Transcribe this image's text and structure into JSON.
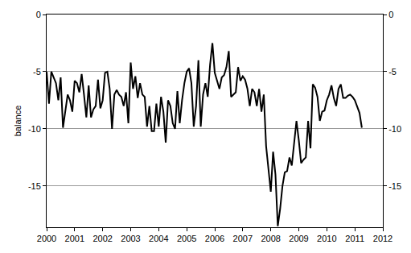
{
  "chart_data": {
    "type": "line",
    "y_label": "balance",
    "color": "#000000",
    "grid": true,
    "xlim": [
      2000,
      2012
    ],
    "xticks": [
      2000,
      2001,
      2002,
      2003,
      2004,
      2005,
      2006,
      2007,
      2008,
      2009,
      2010,
      2011,
      2012
    ],
    "ylim": [
      -18.6,
      0
    ],
    "yticks": [
      -15,
      -10,
      -5,
      0
    ],
    "y2lim": [
      -18.6,
      0
    ],
    "y2ticks": [
      -15,
      -10,
      -5,
      0
    ],
    "x": [
      2000,
      2000.083,
      2000.167,
      2000.25,
      2000.333,
      2000.417,
      2000.5,
      2000.583,
      2000.667,
      2000.75,
      2000.833,
      2000.917,
      2001,
      2001.083,
      2001.167,
      2001.25,
      2001.333,
      2001.417,
      2001.5,
      2001.583,
      2001.667,
      2001.75,
      2001.833,
      2001.917,
      2002,
      2002.083,
      2002.167,
      2002.25,
      2002.333,
      2002.417,
      2002.5,
      2002.583,
      2002.667,
      2002.75,
      2002.833,
      2002.917,
      2003,
      2003.083,
      2003.167,
      2003.25,
      2003.333,
      2003.417,
      2003.5,
      2003.583,
      2003.667,
      2003.75,
      2003.833,
      2003.917,
      2004,
      2004.083,
      2004.167,
      2004.25,
      2004.333,
      2004.417,
      2004.5,
      2004.583,
      2004.667,
      2004.75,
      2004.833,
      2004.917,
      2005,
      2005.083,
      2005.167,
      2005.25,
      2005.333,
      2005.417,
      2005.5,
      2005.583,
      2005.667,
      2005.75,
      2005.833,
      2005.917,
      2006,
      2006.083,
      2006.167,
      2006.25,
      2006.333,
      2006.417,
      2006.5,
      2006.583,
      2006.667,
      2006.75,
      2006.833,
      2006.917,
      2007,
      2007.083,
      2007.167,
      2007.25,
      2007.333,
      2007.417,
      2007.5,
      2007.583,
      2007.667,
      2007.75,
      2007.833,
      2007.917,
      2008,
      2008.083,
      2008.167,
      2008.25,
      2008.333,
      2008.417,
      2008.5,
      2008.583,
      2008.667,
      2008.75,
      2008.833,
      2008.917,
      2009,
      2009.083,
      2009.167,
      2009.25,
      2009.333,
      2009.417,
      2009.5,
      2009.583,
      2009.667,
      2009.75,
      2009.833,
      2009.917,
      2010,
      2010.083,
      2010.167,
      2010.25,
      2010.333,
      2010.417,
      2010.5,
      2010.583,
      2010.667,
      2010.75,
      2010.833,
      2010.917,
      2011,
      2011.083,
      2011.167,
      2011.25
    ],
    "values": [
      -5,
      -7.8,
      -5,
      -5.5,
      -6,
      -7.5,
      -5.5,
      -9.9,
      -8.5,
      -7,
      -7.5,
      -8.5,
      -5.8,
      -6,
      -6.8,
      -5.2,
      -7,
      -9,
      -6.2,
      -9,
      -8.3,
      -8,
      -5.7,
      -8.2,
      -7.5,
      -5.1,
      -5,
      -6.5,
      -10,
      -7,
      -6.6,
      -7,
      -7.2,
      -8,
      -6.8,
      -9.5,
      -4.2,
      -6.5,
      -5.4,
      -7.3,
      -6,
      -7,
      -7.2,
      -9.8,
      -8,
      -10.2,
      -10.2,
      -7.8,
      -9.8,
      -7.2,
      -8.5,
      -11.2,
      -7.5,
      -8,
      -9.5,
      -10,
      -6.7,
      -9.5,
      -7.5,
      -6,
      -5,
      -4.7,
      -6,
      -9.8,
      -8,
      -4,
      -9.8,
      -7,
      -6,
      -7.2,
      -4.4,
      -2.5,
      -5.1,
      -5.8,
      -6.5,
      -5.5,
      -5.3,
      -4.6,
      -3.2,
      -7.2,
      -7,
      -6.8,
      -4.6,
      -5.8,
      -5.4,
      -5.7,
      -6.5,
      -8,
      -6.5,
      -6.8,
      -8,
      -6.5,
      -8.5,
      -7,
      -11.5,
      -13.5,
      -15.5,
      -12,
      -14,
      -18.5,
      -17,
      -15,
      -13.8,
      -13.7,
      -12.5,
      -13.2,
      -11.2,
      -9.3,
      -11,
      -13,
      -12.7,
      -12.5,
      -9.3,
      -11.7,
      -6.1,
      -6.4,
      -7.2,
      -9.3,
      -8.5,
      -8.4,
      -7.5,
      -7,
      -6.2,
      -7.3,
      -8,
      -6.5,
      -6.1,
      -7.3,
      -7.3,
      -7.1,
      -7.0,
      -7.2,
      -7.5,
      -8.0,
      -8.6,
      -9.9
    ]
  }
}
